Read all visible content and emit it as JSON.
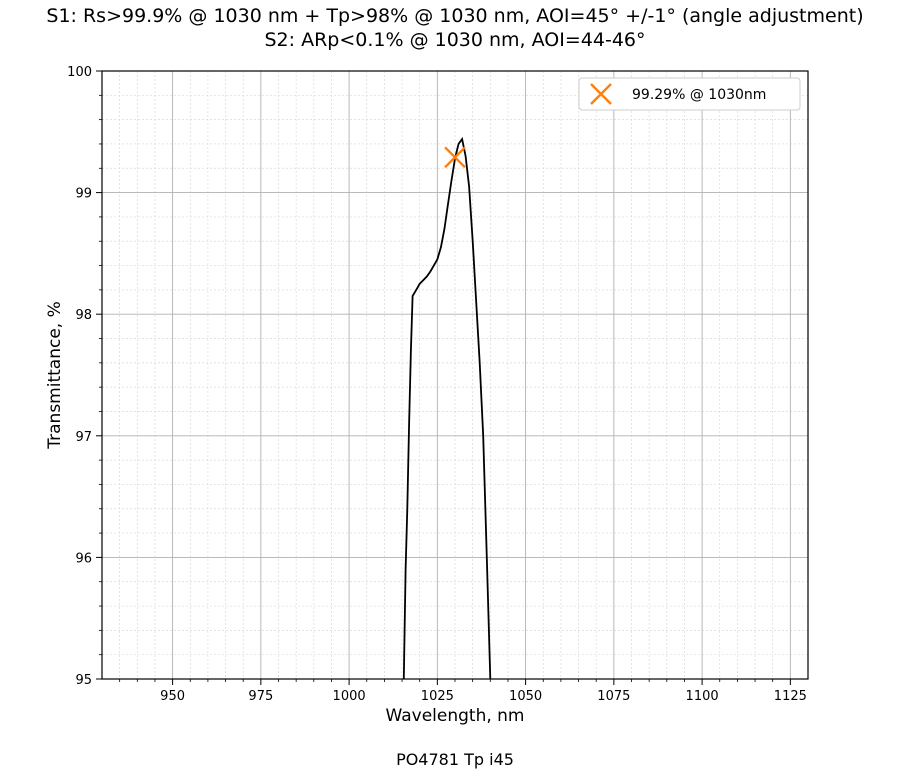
{
  "chart_data": {
    "type": "line",
    "title_line1": "S1: Rs>99.9% @ 1030 nm + Tp>98% @ 1030 nm, AOI=45° +/-1° (angle adjustment)",
    "title_line2": "S2: ARp<0.1% @ 1030 nm, AOI=44-46°",
    "xlabel": "Wavelength, nm",
    "ylabel": "Transmittance, %",
    "caption": "PO4781 Tp i45",
    "xlim": [
      930,
      1130
    ],
    "ylim": [
      95,
      100
    ],
    "x_ticks": [
      950,
      975,
      1000,
      1025,
      1050,
      1075,
      1100,
      1125
    ],
    "x_tick_labels": [
      "950",
      "975",
      "1000",
      "1025",
      "1050",
      "1075",
      "1100",
      "1125"
    ],
    "y_ticks": [
      95,
      96,
      97,
      98,
      99,
      100
    ],
    "y_tick_labels": [
      "95",
      "96",
      "97",
      "98",
      "99",
      "100"
    ],
    "grid": "major and minor",
    "legend_position": "top-right",
    "series": [
      {
        "x": [
          1015.5,
          1016,
          1016.5,
          1017,
          1017.5,
          1018,
          1019,
          1020,
          1021,
          1022,
          1023,
          1024,
          1025,
          1026,
          1027,
          1028,
          1029,
          1030,
          1031,
          1032,
          1033,
          1034,
          1035,
          1036,
          1037,
          1038,
          1039,
          1040
        ],
        "y": [
          95.0,
          95.9,
          96.4,
          97.1,
          97.7,
          98.15,
          98.2,
          98.25,
          98.28,
          98.31,
          98.35,
          98.4,
          98.45,
          98.55,
          98.7,
          98.9,
          99.1,
          99.28,
          99.4,
          99.44,
          99.3,
          99.05,
          98.6,
          98.1,
          97.6,
          97.0,
          96.0,
          95.0
        ],
        "color": "#000000"
      }
    ],
    "marker": {
      "x": 1030,
      "y": 99.29,
      "label": "99.29% @ 1030nm",
      "color": "#ff7f0e",
      "symbol": "x"
    }
  }
}
